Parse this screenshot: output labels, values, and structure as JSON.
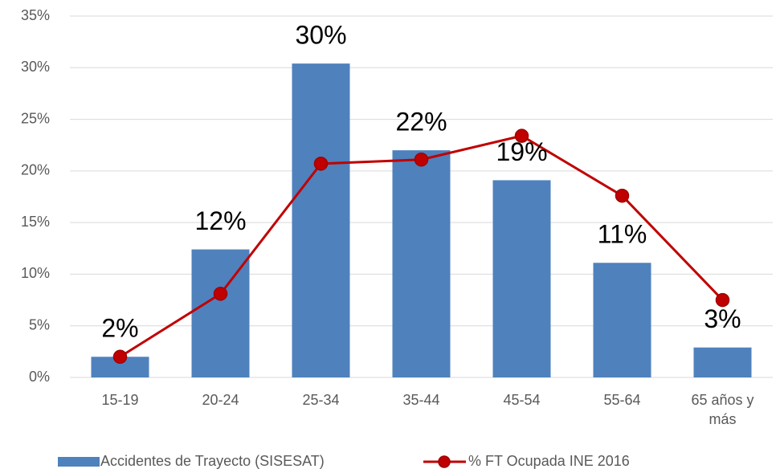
{
  "chart_data": {
    "type": "bar",
    "categories": [
      "15-19",
      "20-24",
      "25-34",
      "35-44",
      "45-54",
      "55-64",
      "65 años y más"
    ],
    "series": [
      {
        "name": "Accidentes de Trayecto (SISESAT)",
        "type": "bar",
        "color": "#4f81bd",
        "values": [
          2.0,
          12.4,
          30.4,
          22.0,
          19.1,
          11.1,
          2.9
        ],
        "value_labels": [
          "2%",
          "12%",
          "30%",
          "22%",
          "19%",
          "11%",
          "3%"
        ]
      },
      {
        "name": "% FT Ocupada INE 2016",
        "type": "line",
        "color": "#c00000",
        "values": [
          2.0,
          8.1,
          20.7,
          21.1,
          23.4,
          17.6,
          7.5
        ]
      }
    ],
    "ylim": [
      0,
      35
    ],
    "yticks": [
      {
        "value": 0,
        "label": "0%"
      },
      {
        "value": 5,
        "label": "5%"
      },
      {
        "value": 10,
        "label": "10%"
      },
      {
        "value": 15,
        "label": "15%"
      },
      {
        "value": 20,
        "label": "20%"
      },
      {
        "value": 25,
        "label": "25%"
      },
      {
        "value": 30,
        "label": "30%"
      },
      {
        "value": 35,
        "label": "35%"
      }
    ],
    "grid": true,
    "legend": "bottom"
  }
}
